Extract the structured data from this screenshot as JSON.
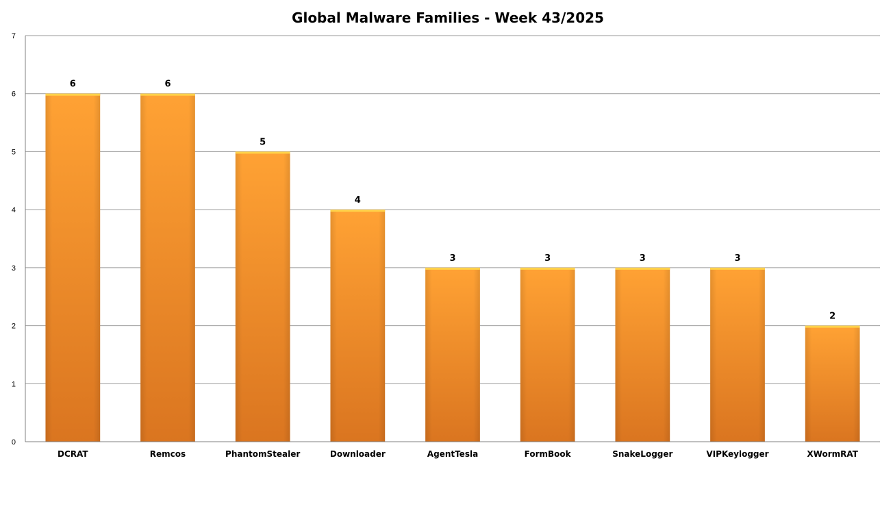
{
  "chart_data": {
    "type": "bar",
    "title": "Global Malware Families - Week 43/2025",
    "categories": [
      "DCRAT",
      "Remcos",
      "PhantomStealer",
      "Downloader",
      "AgentTesla",
      "FormBook",
      "SnakeLogger",
      "VIPKeylogger",
      "XWormRAT"
    ],
    "values": [
      6,
      6,
      5,
      4,
      3,
      3,
      3,
      3,
      2
    ],
    "yticks": [
      "0",
      "1",
      "2",
      "3",
      "4",
      "5",
      "6",
      "7"
    ],
    "ylim": [
      0,
      7
    ],
    "grid": true,
    "legend": "none",
    "data_labels": true,
    "colors": {
      "bar_top": "#ffa234",
      "bar_bottom": "#da7520",
      "bar_cap": "#ffd24a",
      "gridline": "#9a9a9a",
      "axis": "#808080"
    }
  }
}
